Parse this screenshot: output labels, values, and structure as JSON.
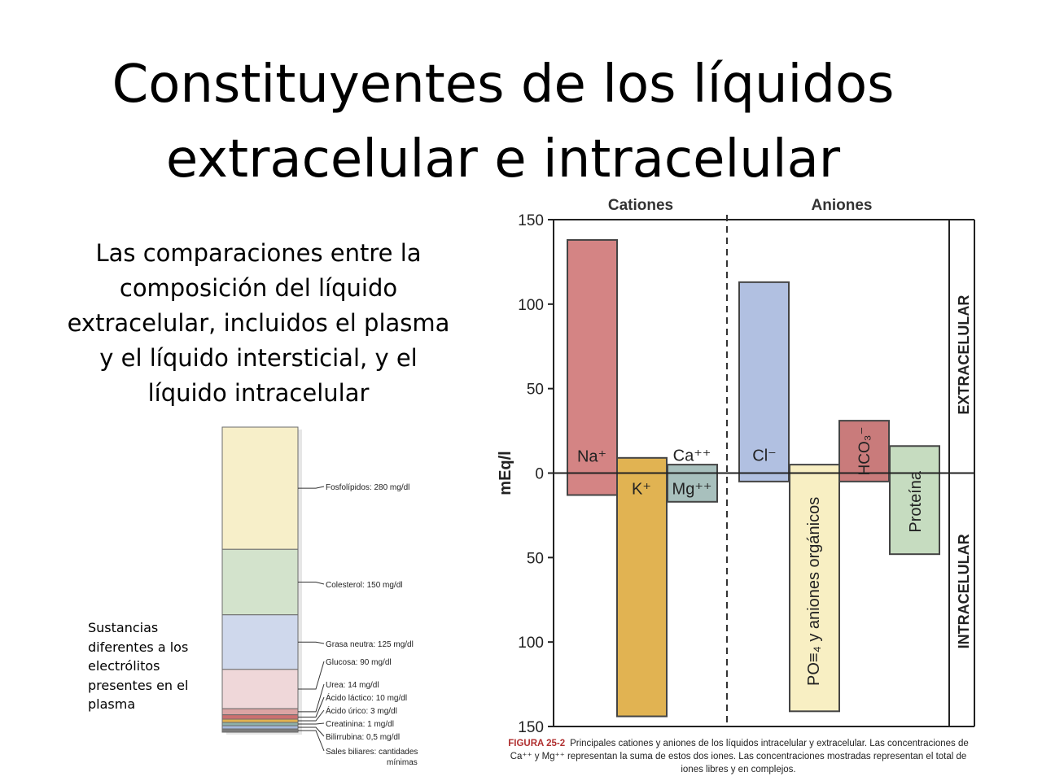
{
  "slide": {
    "title_line1": "Constituyentes de los líquidos",
    "title_line2": "extracelular e intracelular",
    "intro": "Las comparaciones entre la composición del líquido extracelular, incluidos el plasma y el líquido intersticial, y el líquido intracelular",
    "side_note": "Sustancias diferentes a los electrólitos presentes en el plasma"
  },
  "plasma_figure": {
    "items": [
      {
        "label": "Fosfolípidos: 280 mg/dl",
        "value": 280,
        "color": "#f7efc9"
      },
      {
        "label": "Colesterol: 150 mg/dl",
        "value": 150,
        "color": "#d3e3cc"
      },
      {
        "label": "Grasa neutra: 125 mg/dl",
        "value": 125,
        "color": "#cfd8ec"
      },
      {
        "label": "Glucosa: 90 mg/dl",
        "value": 90,
        "color": "#efd7d9"
      },
      {
        "label": "Urea: 14 mg/dl",
        "value": 14,
        "color": "#dba4a4"
      },
      {
        "label": "Ácido láctico: 10 mg/dl",
        "value": 10,
        "color": "#cc7070"
      },
      {
        "label": "Ácido úrico: 3 mg/dl",
        "value": 3,
        "color": "#e3b24f"
      },
      {
        "label": "Creatinina: 1 mg/dl",
        "value": 1,
        "color": "#8fb0a8"
      },
      {
        "label": "Bilirrubina: 0,5 mg/dl",
        "value": 0.5,
        "color": "#a5b8db"
      },
      {
        "label": "Sales biliares: cantidades mínimas",
        "value": 0,
        "color": "#7c7c7c"
      }
    ]
  },
  "chart_data": {
    "type": "bar",
    "ylabel": "mEq/l",
    "group_labels": [
      "Cationes",
      "Aniones"
    ],
    "region_labels": [
      "EXTRACELULAR",
      "INTRACELULAR"
    ],
    "y_ticks_top": [
      "150",
      "100",
      "50",
      "0"
    ],
    "y_ticks_bottom": [
      "50",
      "100",
      "150"
    ],
    "ylim": [
      -150,
      150
    ],
    "bars": [
      {
        "name": "Na+",
        "label": "Na⁺",
        "extracellular": 138,
        "intracellular": 13,
        "color": "#d48484"
      },
      {
        "name": "K+",
        "label": "K⁺",
        "extracellular": 9,
        "intracellular": 144,
        "color": "#e1b352"
      },
      {
        "name": "Ca++ / Mg++",
        "label_top": "Ca⁺⁺",
        "label_bottom": "Mg⁺⁺",
        "extracellular": 5,
        "intracellular": 17,
        "color": "#a8c0bd"
      },
      {
        "name": "Cl-",
        "label": "Cl⁻",
        "extracellular": 113,
        "intracellular": 5,
        "color": "#b1c0e1"
      },
      {
        "name": "PO4 y aniones orgánicos",
        "label": "PO≡₄ y aniones orgánicos",
        "extracellular": 5,
        "intracellular": 141,
        "color": "#f8efc3"
      },
      {
        "name": "HCO3-",
        "label": "HCO₃⁻",
        "extracellular": 31,
        "intracellular": 5,
        "color": "#c97b7b"
      },
      {
        "name": "Proteína",
        "label": "Proteína",
        "extracellular": 16,
        "intracellular": 48,
        "color": "#c6dcc0"
      }
    ]
  },
  "caption": {
    "figure": "FIGURA 25-2",
    "text": "Principales cationes y aniones de los líquidos intracelular y extracelular. Las concentraciones de Ca⁺⁺ y Mg⁺⁺ representan la suma de estos dos iones. Las concentraciones mostradas representan el total de iones libres y en complejos."
  }
}
